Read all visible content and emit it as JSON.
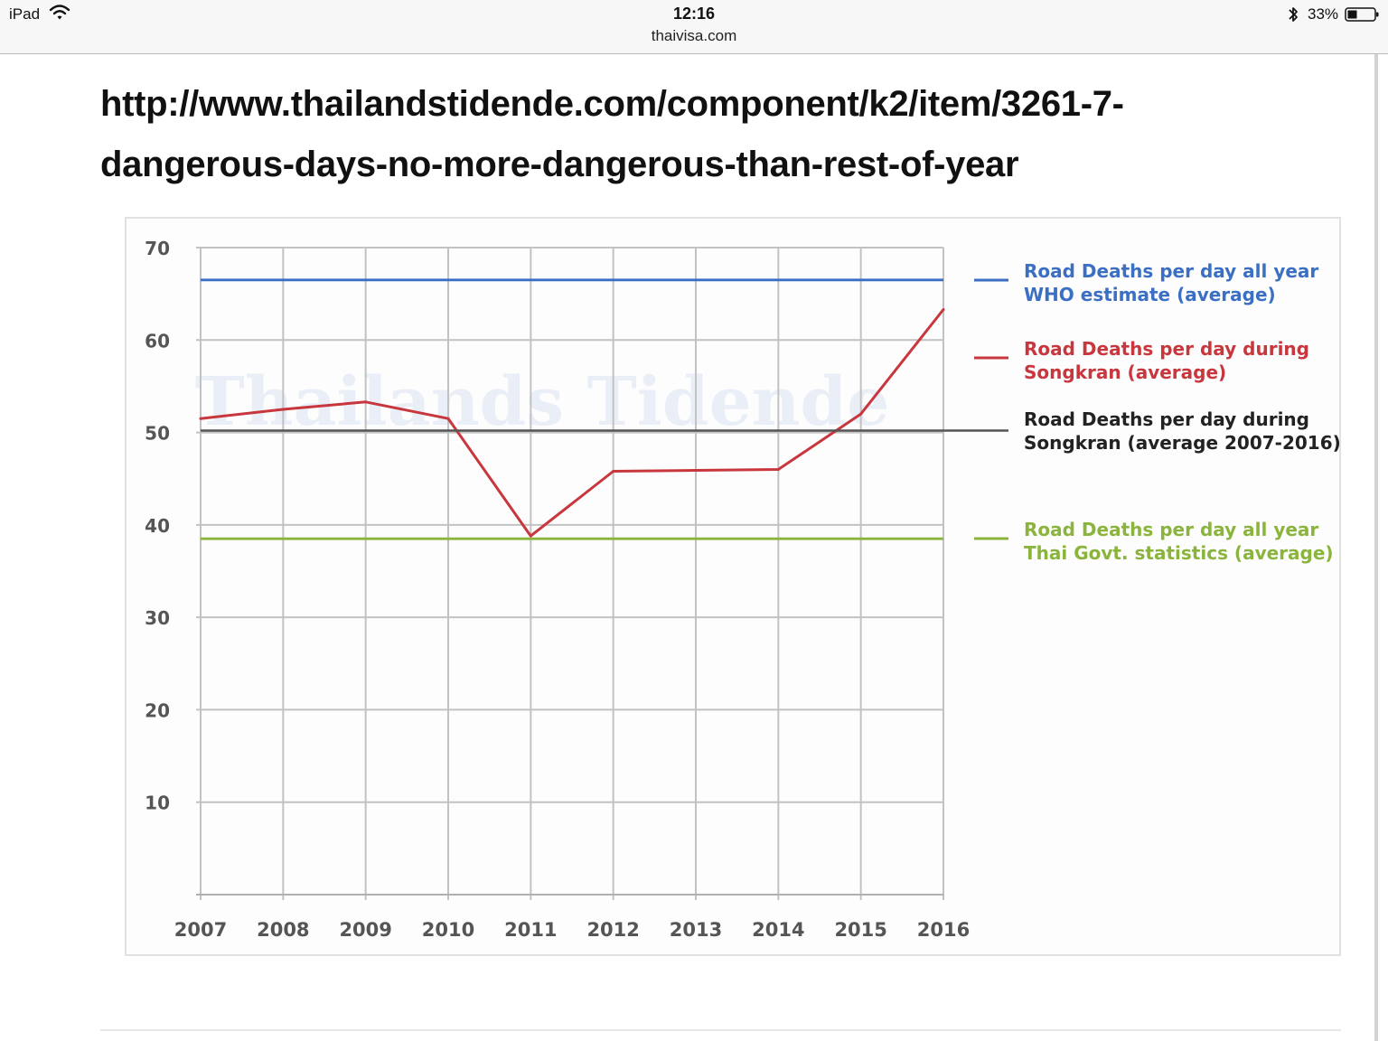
{
  "status_bar": {
    "device": "iPad",
    "time": "12:16",
    "domain": "thaivisa.com",
    "battery": "33%",
    "icons": [
      "wifi-icon",
      "bluetooth-icon",
      "battery-icon"
    ]
  },
  "post": {
    "link_text": "http://www.thailandstidende.com/component/k2/item/3261-7-dangerous-days-no-more-dangerous-than-rest-of-year"
  },
  "chart_image": {
    "watermark": "Thailands Tidende"
  },
  "chart_data": {
    "type": "line",
    "title": "",
    "xlabel": "",
    "ylabel": "",
    "x": [
      "2007",
      "2008",
      "2009",
      "2010",
      "2011",
      "2012",
      "2013",
      "2014",
      "2015",
      "2016"
    ],
    "y_ticks": [
      "70",
      "60",
      "50",
      "40",
      "30",
      "20",
      "10"
    ],
    "ylim": [
      0,
      70
    ],
    "grid": true,
    "legend_position": "right",
    "series": [
      {
        "name_lines": [
          "Road Deaths per day all year",
          "WHO estimate (average)"
        ],
        "color": "#3a6fc4",
        "values": [
          66.5,
          66.5,
          66.5,
          66.5,
          66.5,
          66.5,
          66.5,
          66.5,
          66.5,
          66.5
        ],
        "style": "constant"
      },
      {
        "name_lines": [
          "Road Deaths per day during",
          "Songkran (average)"
        ],
        "color": "#c8373d",
        "values": [
          51.5,
          52.5,
          53.3,
          51.5,
          38.8,
          45.8,
          45.9,
          46.0,
          52.0,
          63.3
        ],
        "style": "series"
      },
      {
        "name_lines": [
          "Road Deaths per day during",
          "Songkran (average 2007-2016)"
        ],
        "color": "#555555",
        "values": [
          50.2,
          50.2,
          50.2,
          50.2,
          50.2,
          50.2,
          50.2,
          50.2,
          50.2,
          50.2
        ],
        "style": "constant"
      },
      {
        "name_lines": [
          "Road Deaths per day all year",
          "Thai Govt. statistics (average)"
        ],
        "color": "#8ab43c",
        "values": [
          38.5,
          38.5,
          38.5,
          38.5,
          38.5,
          38.5,
          38.5,
          38.5,
          38.5,
          38.5
        ],
        "style": "constant"
      }
    ]
  }
}
